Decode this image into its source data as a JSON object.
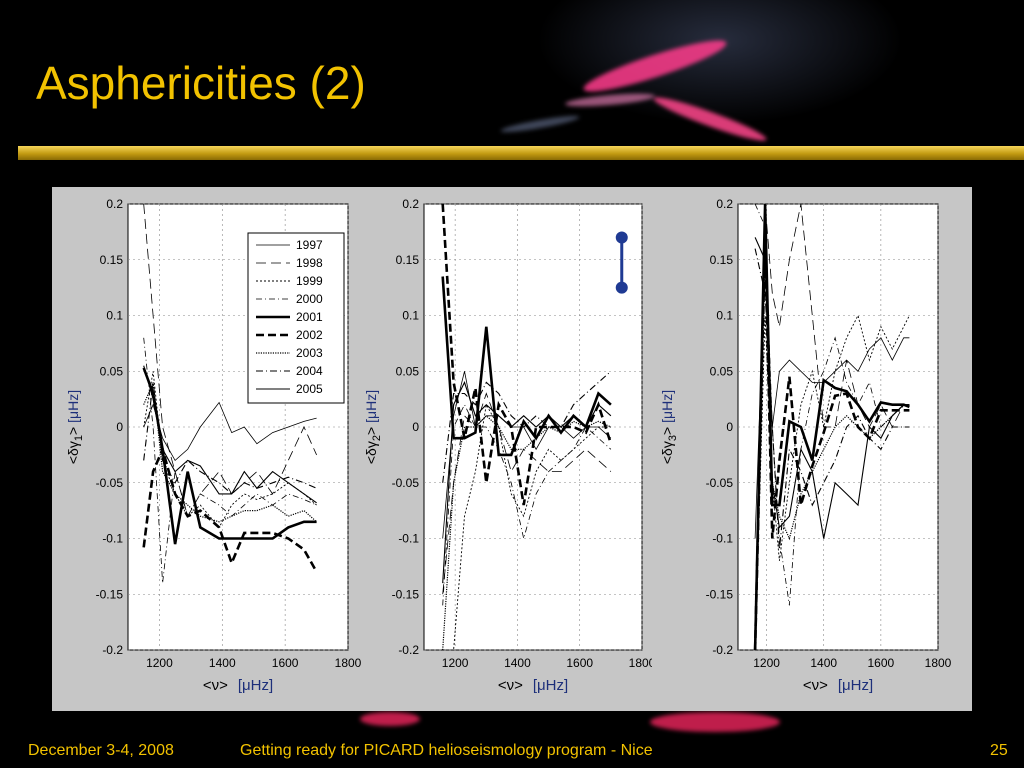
{
  "slide": {
    "title": "Asphericities (2)",
    "footer_date": "December 3-4, 2008",
    "footer_title": "Getting ready for PICARD helioseismology program - Nice",
    "page_number": "25",
    "title_color": "#f2c200"
  },
  "legend": {
    "entries": [
      "1997",
      "1998",
      "1999",
      "2000",
      "2001",
      "2002",
      "2003",
      "2004",
      "2005"
    ]
  },
  "chart_data": [
    {
      "type": "line",
      "ylabel": {
        "prefix": "<δγ",
        "sub": "1",
        "suffix": ">",
        "unit": "[μHz]"
      },
      "xlabel": {
        "main": "<ν>",
        "unit": "[μHz]"
      },
      "xlim": [
        1100,
        1800
      ],
      "ylim": [
        -0.2,
        0.2
      ],
      "xticks": [
        1200,
        1400,
        1600,
        1800
      ],
      "yticks": [
        0.2,
        0.15,
        0.1,
        0.05,
        0,
        -0.05,
        -0.1,
        -0.15,
        -0.2
      ],
      "grid": true,
      "legend": "top-right",
      "series": [
        {
          "name": "1997",
          "x": [
            1150,
            1180,
            1210,
            1250,
            1290,
            1330,
            1390,
            1430,
            1470,
            1510,
            1560,
            1610,
            1660,
            1700
          ],
          "y": [
            0.0,
            0.02,
            -0.01,
            -0.03,
            -0.02,
            0.0,
            0.022,
            -0.005,
            0.0,
            -0.015,
            -0.005,
            0.0,
            0.005,
            0.008
          ]
        },
        {
          "name": "1998",
          "x": [
            1150,
            1180,
            1210,
            1250,
            1290,
            1330,
            1390,
            1430,
            1470,
            1510,
            1560,
            1610,
            1660,
            1700
          ],
          "y": [
            0.2,
            0.1,
            0.0,
            -0.04,
            -0.08,
            -0.06,
            -0.04,
            -0.06,
            -0.05,
            -0.04,
            -0.06,
            -0.03,
            0.0,
            -0.025
          ]
        },
        {
          "name": "1999",
          "x": [
            1150,
            1180,
            1210,
            1250,
            1290,
            1330,
            1390,
            1430,
            1470,
            1510,
            1560,
            1610,
            1660,
            1700
          ],
          "y": [
            0.0,
            0.05,
            -0.03,
            -0.06,
            -0.08,
            -0.07,
            -0.09,
            -0.07,
            -0.06,
            -0.065,
            -0.06,
            -0.05,
            -0.06,
            -0.07
          ]
        },
        {
          "name": "2000",
          "x": [
            1150,
            1180,
            1210,
            1250,
            1290,
            1330,
            1390,
            1430,
            1470,
            1510,
            1560,
            1610,
            1660,
            1700
          ],
          "y": [
            0.08,
            0.0,
            -0.14,
            -0.04,
            -0.08,
            -0.06,
            -0.07,
            -0.08,
            -0.07,
            -0.06,
            -0.07,
            -0.06,
            -0.065,
            -0.07
          ]
        },
        {
          "name": "2001",
          "x": [
            1150,
            1180,
            1210,
            1250,
            1290,
            1330,
            1390,
            1430,
            1470,
            1510,
            1560,
            1610,
            1660,
            1700
          ],
          "y": [
            0.053,
            0.03,
            -0.02,
            -0.105,
            -0.04,
            -0.09,
            -0.1,
            -0.1,
            -0.1,
            -0.1,
            -0.1,
            -0.09,
            -0.085,
            -0.085
          ]
        },
        {
          "name": "2002",
          "x": [
            1150,
            1180,
            1210,
            1250,
            1290,
            1330,
            1390,
            1430,
            1470,
            1510,
            1560,
            1610,
            1660,
            1700
          ],
          "y": [
            -0.108,
            -0.04,
            -0.02,
            -0.06,
            -0.08,
            -0.075,
            -0.09,
            -0.122,
            -0.095,
            -0.095,
            -0.095,
            -0.1,
            -0.11,
            -0.13
          ]
        },
        {
          "name": "2003",
          "x": [
            1150,
            1180,
            1210,
            1250,
            1290,
            1330,
            1390,
            1430,
            1470,
            1510,
            1560,
            1610,
            1660,
            1700
          ],
          "y": [
            0.02,
            0.04,
            -0.04,
            -0.06,
            -0.07,
            -0.08,
            -0.085,
            -0.08,
            -0.075,
            -0.075,
            -0.07,
            -0.08,
            -0.075,
            -0.085
          ]
        },
        {
          "name": "2004",
          "x": [
            1150,
            1180,
            1210,
            1250,
            1290,
            1330,
            1390,
            1430,
            1470,
            1510,
            1560,
            1610,
            1660,
            1700
          ],
          "y": [
            -0.03,
            0.04,
            -0.03,
            -0.05,
            -0.03,
            -0.04,
            -0.05,
            -0.06,
            -0.05,
            -0.055,
            -0.05,
            -0.045,
            -0.05,
            -0.055
          ]
        },
        {
          "name": "2005",
          "x": [
            1150,
            1180,
            1210,
            1250,
            1290,
            1330,
            1390,
            1430,
            1470,
            1510,
            1560,
            1610,
            1660,
            1700
          ],
          "y": [
            0.055,
            0.025,
            -0.02,
            -0.04,
            -0.03,
            -0.035,
            -0.06,
            -0.06,
            -0.04,
            -0.055,
            -0.04,
            -0.05,
            -0.06,
            -0.068
          ]
        }
      ]
    },
    {
      "type": "line",
      "ylabel": {
        "prefix": "<δγ",
        "sub": "2",
        "suffix": ">",
        "unit": "[μHz]"
      },
      "xlabel": {
        "main": "<ν>",
        "unit": "[μHz]"
      },
      "xlim": [
        1100,
        1800
      ],
      "ylim": [
        -0.2,
        0.2
      ],
      "xticks": [
        1200,
        1400,
        1600,
        1800
      ],
      "yticks": [
        0.2,
        0.15,
        0.1,
        0.05,
        0,
        -0.05,
        -0.1,
        -0.15,
        -0.2
      ],
      "grid": true,
      "errorbar": {
        "x": 1735,
        "y_low": 0.125,
        "y_high": 0.17,
        "color": "#1f3a93"
      },
      "series": [
        {
          "name": "1997",
          "x": [
            1160,
            1195,
            1230,
            1265,
            1300,
            1340,
            1380,
            1420,
            1460,
            1500,
            1540,
            1580,
            1620,
            1660,
            1700
          ],
          "y": [
            -0.1,
            0.01,
            0.05,
            0.0,
            0.01,
            0.01,
            0.0,
            0.0,
            -0.02,
            0.0,
            0.0,
            -0.01,
            0.0,
            0.0,
            -0.01
          ]
        },
        {
          "name": "1998",
          "x": [
            1160,
            1195,
            1230,
            1265,
            1300,
            1340,
            1380,
            1420,
            1460,
            1500,
            1540,
            1580,
            1620,
            1660,
            1700
          ],
          "y": [
            -0.15,
            -0.05,
            0.01,
            0.0,
            0.03,
            0.0,
            -0.04,
            -0.02,
            -0.03,
            -0.04,
            -0.04,
            -0.03,
            -0.02,
            -0.03,
            -0.04
          ]
        },
        {
          "name": "1999",
          "x": [
            1160,
            1195,
            1230,
            1265,
            1300,
            1340,
            1380,
            1420,
            1460,
            1500,
            1540,
            1580,
            1620,
            1660,
            1700
          ],
          "y": [
            -0.2,
            -0.2,
            -0.08,
            -0.04,
            0.02,
            0.0,
            -0.06,
            -0.08,
            -0.04,
            -0.02,
            -0.03,
            -0.02,
            -0.01,
            0.0,
            0.0
          ]
        },
        {
          "name": "2000",
          "x": [
            1160,
            1195,
            1230,
            1265,
            1300,
            1340,
            1380,
            1420,
            1460,
            1500,
            1540,
            1580,
            1620,
            1660,
            1700
          ],
          "y": [
            -0.16,
            0.0,
            0.02,
            0.0,
            0.0,
            -0.02,
            -0.05,
            -0.1,
            -0.06,
            -0.04,
            -0.03,
            -0.02,
            0.0,
            -0.01,
            -0.02
          ]
        },
        {
          "name": "2001",
          "x": [
            1160,
            1195,
            1230,
            1265,
            1300,
            1340,
            1380,
            1420,
            1460,
            1500,
            1540,
            1580,
            1620,
            1660,
            1700
          ],
          "y": [
            0.135,
            -0.01,
            -0.01,
            -0.005,
            0.09,
            -0.025,
            -0.025,
            0.005,
            -0.01,
            0.01,
            -0.005,
            0.01,
            0.0,
            0.03,
            0.02
          ]
        },
        {
          "name": "2002",
          "x": [
            1160,
            1195,
            1230,
            1265,
            1300,
            1340,
            1380,
            1420,
            1460,
            1500,
            1540,
            1580,
            1620,
            1660,
            1700
          ],
          "y": [
            0.2,
            0.04,
            -0.01,
            0.035,
            -0.05,
            0.02,
            0.0,
            -0.07,
            0.0,
            0.0,
            0.0,
            0.0,
            -0.005,
            0.02,
            -0.015
          ]
        },
        {
          "name": "2003",
          "x": [
            1160,
            1195,
            1230,
            1265,
            1300,
            1340,
            1380,
            1420,
            1460,
            1500,
            1540,
            1580,
            1620,
            1660,
            1700
          ],
          "y": [
            -0.2,
            -0.05,
            0.0,
            0.0,
            0.01,
            0.0,
            -0.02,
            -0.02,
            -0.01,
            0.0,
            -0.005,
            0.005,
            0.0,
            0.005,
            0.0
          ]
        },
        {
          "name": "2004",
          "x": [
            1160,
            1195,
            1230,
            1265,
            1300,
            1340,
            1380,
            1420,
            1460,
            1500,
            1540,
            1580,
            1620,
            1660,
            1700
          ],
          "y": [
            -0.05,
            0.03,
            0.03,
            0.02,
            0.04,
            0.03,
            0.01,
            0.0,
            0.01,
            0.0,
            0.0,
            0.02,
            0.03,
            0.04,
            0.05
          ]
        },
        {
          "name": "2005",
          "x": [
            1160,
            1195,
            1230,
            1265,
            1300,
            1340,
            1380,
            1420,
            1460,
            1500,
            1540,
            1580,
            1620,
            1660,
            1700
          ],
          "y": [
            -0.14,
            0.02,
            0.04,
            0.01,
            0.02,
            0.01,
            0.0,
            0.01,
            0.0,
            0.01,
            0.0,
            0.01,
            0.0,
            0.02,
            0.01
          ]
        }
      ]
    },
    {
      "type": "line",
      "ylabel": {
        "prefix": "<δγ",
        "sub": "3",
        "suffix": ">",
        "unit": "[μHz]"
      },
      "xlabel": {
        "main": "<ν>",
        "unit": "[μHz]"
      },
      "xlim": [
        1100,
        1800
      ],
      "ylim": [
        -0.2,
        0.2
      ],
      "xticks": [
        1200,
        1400,
        1600,
        1800
      ],
      "yticks": [
        0.2,
        0.15,
        0.1,
        0.05,
        0,
        -0.05,
        -0.1,
        -0.15,
        -0.2
      ],
      "grid": true,
      "series": [
        {
          "name": "1997",
          "x": [
            1160,
            1195,
            1220,
            1245,
            1280,
            1320,
            1360,
            1400,
            1440,
            1480,
            1520,
            1560,
            1600,
            1640,
            1680,
            1700
          ],
          "y": [
            -0.1,
            0.15,
            0.0,
            0.05,
            0.06,
            0.05,
            0.04,
            0.04,
            0.05,
            0.06,
            0.05,
            0.07,
            0.08,
            0.06,
            0.08,
            0.08
          ]
        },
        {
          "name": "1998",
          "x": [
            1160,
            1195,
            1220,
            1245,
            1280,
            1320,
            1360,
            1400,
            1440,
            1480,
            1520,
            1560,
            1600,
            1640,
            1680,
            1700
          ],
          "y": [
            0.2,
            0.2,
            0.12,
            0.09,
            0.15,
            0.2,
            0.1,
            0.0,
            0.0,
            0.06,
            0.02,
            0.0,
            0.02,
            0.0,
            0.02,
            0.02
          ]
        },
        {
          "name": "1999",
          "x": [
            1160,
            1195,
            1220,
            1245,
            1280,
            1320,
            1360,
            1400,
            1440,
            1480,
            1520,
            1560,
            1600,
            1640,
            1680,
            1700
          ],
          "y": [
            -0.2,
            0.1,
            -0.05,
            -0.12,
            -0.05,
            0.02,
            0.05,
            0.0,
            0.05,
            0.08,
            0.1,
            0.06,
            0.09,
            0.07,
            0.09,
            0.1
          ]
        },
        {
          "name": "2000",
          "x": [
            1160,
            1195,
            1220,
            1245,
            1280,
            1320,
            1360,
            1400,
            1440,
            1480,
            1520,
            1560,
            1600,
            1640,
            1680,
            1700
          ],
          "y": [
            0.2,
            0.18,
            0.0,
            -0.1,
            -0.16,
            -0.02,
            0.03,
            0.05,
            0.08,
            0.04,
            0.02,
            0.04,
            0.0,
            0.01,
            0.02,
            0.02
          ]
        },
        {
          "name": "2001",
          "x": [
            1160,
            1195,
            1220,
            1245,
            1280,
            1320,
            1360,
            1400,
            1440,
            1480,
            1520,
            1560,
            1600,
            1640,
            1680,
            1700
          ],
          "y": [
            -0.2,
            0.2,
            -0.07,
            -0.07,
            0.005,
            0.0,
            -0.03,
            0.042,
            0.035,
            0.032,
            0.02,
            0.005,
            0.022,
            0.02,
            0.02,
            0.018
          ]
        },
        {
          "name": "2002",
          "x": [
            1160,
            1195,
            1220,
            1245,
            1280,
            1320,
            1360,
            1400,
            1440,
            1480,
            1520,
            1560,
            1600,
            1640,
            1680,
            1700
          ],
          "y": [
            -0.2,
            0.17,
            -0.1,
            -0.03,
            0.045,
            -0.07,
            -0.035,
            -0.005,
            0.028,
            0.03,
            0.0,
            -0.01,
            0.015,
            0.015,
            0.015,
            0.015
          ]
        },
        {
          "name": "2003",
          "x": [
            1160,
            1195,
            1220,
            1245,
            1280,
            1320,
            1360,
            1400,
            1440,
            1480,
            1520,
            1560,
            1600,
            1640,
            1680,
            1700
          ],
          "y": [
            -0.2,
            0.15,
            -0.05,
            -0.08,
            -0.1,
            -0.06,
            -0.04,
            -0.02,
            0.0,
            0.01,
            0.0,
            -0.01,
            0.0,
            0.01,
            0.02,
            0.02
          ]
        },
        {
          "name": "2004",
          "x": [
            1160,
            1195,
            1220,
            1245,
            1280,
            1320,
            1360,
            1400,
            1440,
            1480,
            1520,
            1560,
            1600,
            1640,
            1680,
            1700
          ],
          "y": [
            0.16,
            0.12,
            0.0,
            -0.11,
            -0.02,
            -0.04,
            -0.07,
            -0.05,
            -0.03,
            0.0,
            0.01,
            -0.01,
            -0.02,
            0.0,
            0.0,
            0.0
          ]
        },
        {
          "name": "2005",
          "x": [
            1160,
            1195,
            1220,
            1245,
            1280,
            1320,
            1360,
            1400,
            1440,
            1480,
            1520,
            1560,
            1600,
            1640,
            1680,
            1700
          ],
          "y": [
            0.17,
            0.15,
            -0.05,
            -0.09,
            -0.08,
            -0.02,
            -0.04,
            -0.1,
            -0.05,
            -0.06,
            -0.07,
            0.0,
            -0.01,
            0.01,
            0.02,
            0.02
          ]
        }
      ]
    }
  ]
}
